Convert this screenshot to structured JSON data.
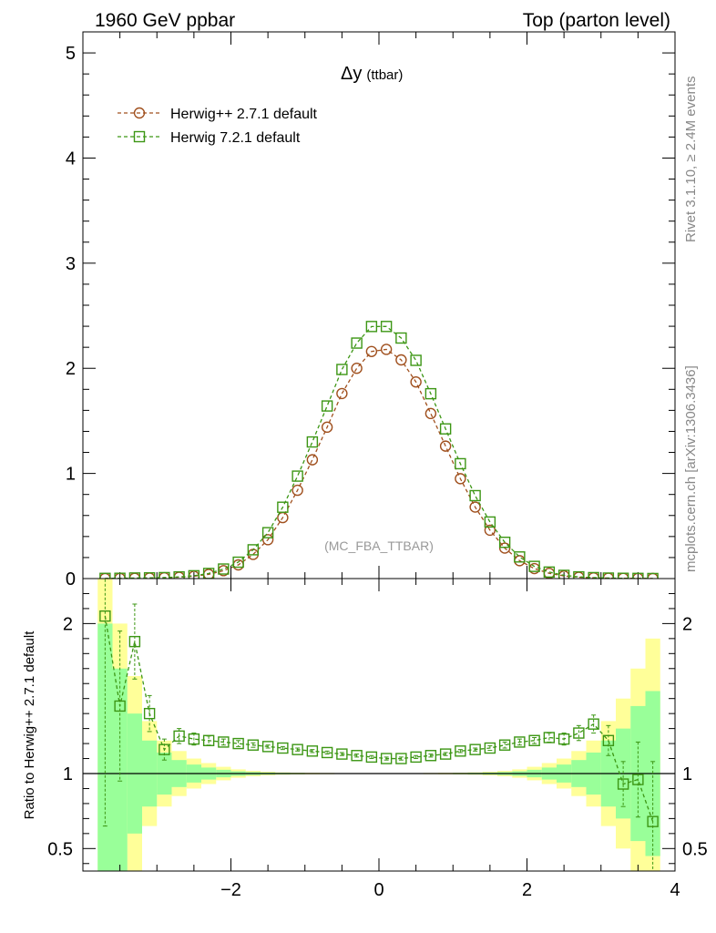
{
  "header": {
    "left": "1960 GeV ppbar",
    "right": "Top (parton level)"
  },
  "side": {
    "rivet": "Rivet 3.1.10, ≥ 2.4M events",
    "mcplots": "mcplots.cern.ch [arXiv:1306.3436]"
  },
  "colors": {
    "herwigpp": "#a0501e",
    "herwig7": "#3c9614",
    "band_yellow": "#ffff99",
    "band_green": "#99ff99"
  },
  "chart_data": [
    {
      "type": "line",
      "title": "Δy",
      "title_suffix": "(ttbar)",
      "watermark": "(MC_FBA_TTBAR)",
      "xlim": [
        -4.0,
        4.0
      ],
      "ylim": [
        0,
        5.2
      ],
      "yticks": [
        "0",
        "1",
        "2",
        "3",
        "4",
        "5"
      ],
      "legend_position": "top-left",
      "x": [
        -3.7,
        -3.5,
        -3.3,
        -3.1,
        -2.9,
        -2.7,
        -2.5,
        -2.3,
        -2.1,
        -1.9,
        -1.7,
        -1.5,
        -1.3,
        -1.1,
        -0.9,
        -0.7,
        -0.5,
        -0.3,
        -0.1,
        0.1,
        0.3,
        0.5,
        0.7,
        0.9,
        1.1,
        1.3,
        1.5,
        1.7,
        1.9,
        2.1,
        2.3,
        2.5,
        2.7,
        2.9,
        3.1,
        3.3,
        3.5,
        3.7
      ],
      "series": [
        {
          "name": "Herwig++ 2.7.1 default",
          "marker": "circle",
          "values": [
            0.001,
            0.002,
            0.003,
            0.005,
            0.008,
            0.013,
            0.022,
            0.04,
            0.075,
            0.13,
            0.23,
            0.37,
            0.58,
            0.84,
            1.13,
            1.44,
            1.76,
            2.0,
            2.16,
            2.18,
            2.08,
            1.87,
            1.57,
            1.26,
            0.95,
            0.68,
            0.46,
            0.29,
            0.17,
            0.095,
            0.05,
            0.025,
            0.013,
            0.007,
            0.004,
            0.003,
            0.002,
            0.001
          ]
        },
        {
          "name": "Herwig 7.2.1 default",
          "marker": "square",
          "values": [
            0.0021,
            0.0029,
            0.0057,
            0.007,
            0.0093,
            0.0162,
            0.027,
            0.0488,
            0.0908,
            0.156,
            0.2738,
            0.4366,
            0.6786,
            0.9744,
            1.2995,
            1.6416,
            1.9888,
            2.24,
            2.3976,
            2.398,
            2.288,
            2.0757,
            1.7584,
            1.4238,
            1.0925,
            0.7888,
            0.5382,
            0.3451,
            0.2057,
            0.1159,
            0.062,
            0.0308,
            0.0165,
            0.0093,
            0.0049,
            0.0028,
            0.0019,
            0.0007
          ]
        }
      ]
    },
    {
      "type": "line",
      "ylabel": "Ratio to Herwig++ 2.7.1 default",
      "xlim": [
        -4.0,
        4.0
      ],
      "ylim": [
        0.35,
        2.3
      ],
      "xticks": [
        "−2",
        "0",
        "2",
        "4"
      ],
      "yticks": [
        "0.5",
        "1",
        "2"
      ],
      "x": [
        -3.7,
        -3.5,
        -3.3,
        -3.1,
        -2.9,
        -2.7,
        -2.5,
        -2.3,
        -2.1,
        -1.9,
        -1.7,
        -1.5,
        -1.3,
        -1.1,
        -0.9,
        -0.7,
        -0.5,
        -0.3,
        -0.1,
        0.1,
        0.3,
        0.5,
        0.7,
        0.9,
        1.1,
        1.3,
        1.5,
        1.7,
        1.9,
        2.1,
        2.3,
        2.5,
        2.7,
        2.9,
        3.1,
        3.3,
        3.5,
        3.7
      ],
      "ratio_values": [
        2.05,
        1.45,
        1.88,
        1.4,
        1.16,
        1.25,
        1.23,
        1.22,
        1.21,
        1.2,
        1.19,
        1.18,
        1.17,
        1.16,
        1.15,
        1.14,
        1.13,
        1.12,
        1.11,
        1.1,
        1.1,
        1.11,
        1.12,
        1.13,
        1.15,
        1.16,
        1.17,
        1.19,
        1.21,
        1.22,
        1.24,
        1.23,
        1.27,
        1.33,
        1.22,
        0.93,
        0.96,
        0.68
      ],
      "ratio_errors": [
        1.4,
        0.5,
        0.25,
        0.12,
        0.07,
        0.05,
        0.04,
        0.03,
        0.02,
        0.02,
        0.015,
        0.01,
        0.01,
        0.01,
        0.01,
        0.01,
        0.01,
        0.01,
        0.01,
        0.01,
        0.01,
        0.01,
        0.01,
        0.01,
        0.01,
        0.01,
        0.015,
        0.02,
        0.02,
        0.02,
        0.03,
        0.04,
        0.05,
        0.06,
        0.1,
        0.15,
        0.25,
        0.4
      ],
      "band_green": [
        1.0,
        0.7,
        0.4,
        0.22,
        0.14,
        0.09,
        0.06,
        0.04,
        0.025,
        0.015,
        0.01,
        0.007,
        0.005,
        0.004,
        0.003,
        0.003,
        0.002,
        0.002,
        0.002,
        0.002,
        0.002,
        0.002,
        0.003,
        0.003,
        0.004,
        0.005,
        0.007,
        0.01,
        0.015,
        0.025,
        0.04,
        0.06,
        0.09,
        0.14,
        0.22,
        0.3,
        0.45,
        0.55
      ],
      "band_yellow": [
        1.3,
        1.0,
        0.65,
        0.35,
        0.22,
        0.15,
        0.1,
        0.07,
        0.045,
        0.028,
        0.018,
        0.012,
        0.008,
        0.006,
        0.005,
        0.004,
        0.003,
        0.003,
        0.003,
        0.003,
        0.003,
        0.003,
        0.004,
        0.005,
        0.006,
        0.008,
        0.012,
        0.018,
        0.028,
        0.045,
        0.07,
        0.1,
        0.15,
        0.22,
        0.35,
        0.5,
        0.7,
        0.9
      ]
    }
  ]
}
